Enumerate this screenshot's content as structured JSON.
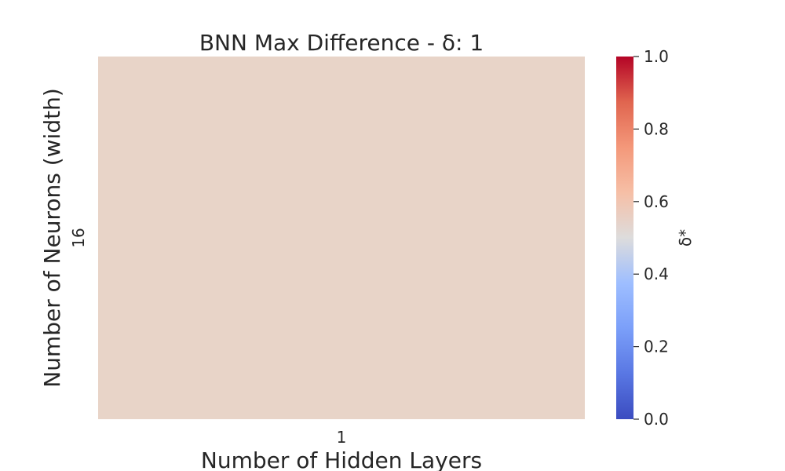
{
  "chart_data": {
    "type": "heatmap",
    "title": "BNN Max Difference - δ: 1",
    "xlabel": "Number of Hidden Layers",
    "ylabel": "Number of Neurons (width)",
    "x_categories": [
      "1"
    ],
    "y_categories": [
      "16"
    ],
    "values": [
      [
        0.58
      ]
    ],
    "colormap": "coolwarm",
    "colorbar": {
      "label": "δ*",
      "range": [
        0.0,
        1.0
      ],
      "ticks": [
        "0.0",
        "0.2",
        "0.4",
        "0.6",
        "0.8",
        "1.0"
      ]
    },
    "grid": false
  },
  "colors": {
    "cell": "#e8d4c8",
    "cold": "#3b4cc0",
    "neutral": "#dddddd",
    "warm": "#b40426"
  }
}
